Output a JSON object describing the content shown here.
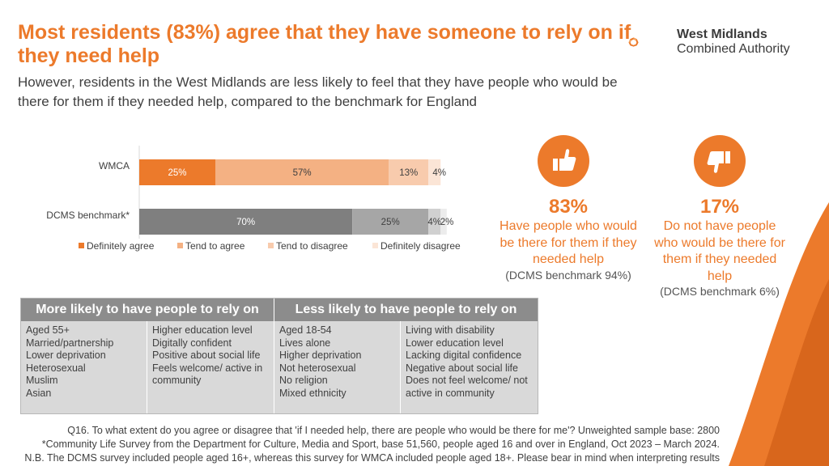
{
  "header": {
    "title": "Most residents (83%) agree that they have someone to rely on if they need help",
    "subtitle": "However, residents in the West Midlands are less likely to feel that they have people who would be there for them if they needed help, compared to the benchmark for England"
  },
  "logo": {
    "line1": "West Midlands",
    "line2": "Combined Authority"
  },
  "chart_data": {
    "type": "bar",
    "orientation": "horizontal",
    "stacked": true,
    "categories": [
      "WMCA",
      "DCMS benchmark*"
    ],
    "series": [
      {
        "name": "Definitely agree",
        "values": [
          25,
          70
        ],
        "labels": [
          "25%",
          "70%"
        ],
        "color": "#ec7a2b",
        "color_bench": "#7f7f7f",
        "label_color": "#ffffff"
      },
      {
        "name": "Tend to agree",
        "values": [
          57,
          25
        ],
        "labels": [
          "57%",
          "25%"
        ],
        "color": "#f4b183",
        "color_bench": "#a6a6a6",
        "label_color": "#404040"
      },
      {
        "name": "Tend to disagree",
        "values": [
          13,
          4
        ],
        "labels": [
          "13%",
          "4%"
        ],
        "color": "#f8cbad",
        "color_bench": "#d0d0d0",
        "label_color": "#404040"
      },
      {
        "name": "Definitely disagree",
        "values": [
          4,
          2
        ],
        "labels": [
          "4%",
          "2%"
        ],
        "color": "#fbe5d6",
        "color_bench": "#ececec",
        "label_color": "#404040"
      }
    ],
    "xlim": [
      0,
      100
    ],
    "legend_position": "bottom",
    "grid": false
  },
  "stats": [
    {
      "icon": "thumbs-up-icon",
      "pct": "83%",
      "desc": [
        "Have people who would",
        "be there for them if they",
        "needed help"
      ],
      "bench": "(DCMS benchmark 94%)"
    },
    {
      "icon": "thumbs-down-icon",
      "pct": "17%",
      "desc": [
        "Do not have people",
        "who would be there for",
        "them if they needed",
        "help"
      ],
      "bench": "(DCMS benchmark 6%)"
    }
  ],
  "likely_table": {
    "more_header": "More likely to have people to rely on",
    "less_header": "Less likely to have people to rely on",
    "columns": [
      [
        "Aged 55+",
        "Married/partnership",
        "Lower deprivation",
        "Heterosexual",
        "Muslim",
        "Asian"
      ],
      [
        "Higher education level",
        "Digitally confident",
        "Positive about social life",
        "Feels welcome/ active in",
        "community"
      ],
      [
        "Aged 18-54",
        "Lives alone",
        "Higher deprivation",
        "Not heterosexual",
        "No religion",
        "Mixed ethnicity"
      ],
      [
        "Living with disability",
        "Lower education level",
        "Lacking digital confidence",
        "Negative about social life",
        "Does not feel welcome/ not",
        "active in community"
      ]
    ]
  },
  "footnotes": [
    "Q16. To what extent do you agree or disagree that 'if I needed help, there are people who would be there for me'? Unweighted sample base: 2800",
    "*Community Life Survey from the Department for Culture, Media and Sport, base 51,560, people aged 16 and over in England, Oct 2023 – March 2024.",
    "N.B. The DCMS survey included people aged 16+, whereas this survey for WMCA included people aged 18+. Please bear in mind when interpreting results"
  ],
  "colors": {
    "accent": "#ec7a2b",
    "table_header": "#8c8c8c",
    "table_body": "#d9d9d9"
  }
}
